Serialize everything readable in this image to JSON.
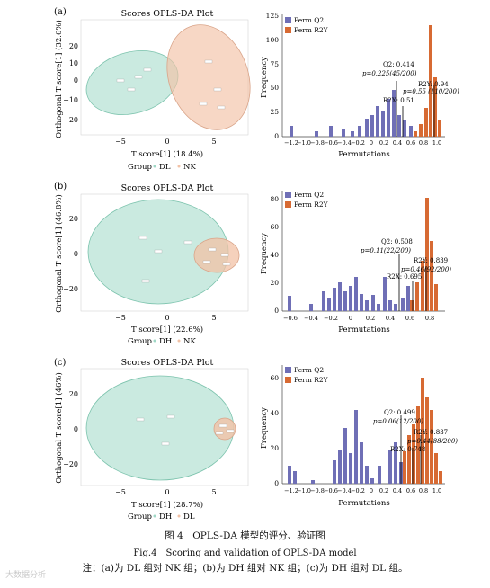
{
  "panels": [
    {
      "label": "(a)",
      "scores": {
        "title": "Scores OPLS-DA Plot",
        "xlabel": "T score[1] (18.4%)",
        "ylabel": "Orthogonal T score[1] (32.6%)",
        "xticks": [
          "−5",
          "0",
          "5"
        ],
        "yticks": [
          "20",
          "10",
          "0",
          "−10",
          "−20"
        ],
        "legend_title": "Group",
        "groups": [
          {
            "name": "DL",
            "color": "#9fd8c6"
          },
          {
            "name": "NK",
            "color": "#f2c2a6"
          }
        ]
      },
      "perm": {
        "legend": [
          "Perm Q2",
          "Perm R2Y"
        ],
        "ylabel": "Frequency",
        "xlabel": "Permutations",
        "yticks": [
          "0",
          "25",
          "50",
          "75",
          "100",
          "125"
        ],
        "xticks": [
          "−1.2",
          "−1.0",
          "−0.8",
          "−0.6",
          "−0.4",
          "−0.2",
          "0",
          "0.2",
          "0.4",
          "0.6",
          "0.8",
          "1.0"
        ],
        "annotations": [
          {
            "line1": "Q2: 0.414",
            "line2": "p=0.225(45/200)"
          },
          {
            "line1": "R2X: 0.51",
            "line2": ""
          },
          {
            "line1": "R2Y: 0.94",
            "line2": "p=0.55 (110/200)"
          }
        ]
      }
    },
    {
      "label": "(b)",
      "scores": {
        "title": "Scores OPLS-DA Plot",
        "xlabel": "T score[1] (22.6%)",
        "ylabel": "Orthogonal T score[1] (46.8%)",
        "xticks": [
          "−5",
          "0",
          "5"
        ],
        "yticks": [
          "20",
          "0",
          "−20"
        ],
        "legend_title": "Group",
        "groups": [
          {
            "name": "DH",
            "color": "#9fd8c6"
          },
          {
            "name": "NK",
            "color": "#f2c2a6"
          }
        ]
      },
      "perm": {
        "legend": [
          "Perm Q2",
          "Perm R2Y"
        ],
        "ylabel": "Frequency",
        "xlabel": "Permutations",
        "yticks": [
          "0",
          "20",
          "40",
          "60",
          "80"
        ],
        "xticks": [
          "−0.6",
          "−0.4",
          "−0.2",
          "0",
          "0.2",
          "0.4",
          "0.6",
          "0.8"
        ],
        "annotations": [
          {
            "line1": "Q2: 0.508",
            "line2": "p=0.11(22/200)"
          },
          {
            "line1": "R2X: 0.695",
            "line2": ""
          },
          {
            "line1": "R2Y: 0.839",
            "line2": "p=0.46(92/200)"
          }
        ]
      }
    },
    {
      "label": "(c)",
      "scores": {
        "title": "Scores OPLS-DA Plot",
        "xlabel": "T score[1] (28.7%)",
        "ylabel": "Orthogonal T score[1] (46%)",
        "xticks": [
          "−5",
          "0",
          "5"
        ],
        "yticks": [
          "20",
          "0",
          "−20"
        ],
        "legend_title": "Group",
        "groups": [
          {
            "name": "DH",
            "color": "#9fd8c6"
          },
          {
            "name": "DL",
            "color": "#f2c2a6"
          }
        ]
      },
      "perm": {
        "legend": [
          "Perm Q2",
          "Perm R2Y"
        ],
        "ylabel": "Frequency",
        "xlabel": "Permutations",
        "yticks": [
          "0",
          "20",
          "40",
          "60"
        ],
        "xticks": [
          "−1.2",
          "−1.0",
          "−0.8",
          "−0.6",
          "−0.4",
          "−0.2",
          "0",
          "0.2",
          "0.4",
          "0.6",
          "0.8",
          "1.0"
        ],
        "annotations": [
          {
            "line1": "Q2: 0.499",
            "line2": "p=0.06(12/200)"
          },
          {
            "line1": "R2X: 0.748",
            "line2": ""
          },
          {
            "line1": "R2Y: 0.837",
            "line2": "p=0.44(88/200)"
          }
        ]
      }
    }
  ],
  "colors": {
    "q2": "#6f6fb6",
    "r2y": "#d76a33",
    "ellipse_a": "#9fd8c6",
    "ellipse_b": "#f2c2a6"
  },
  "caption": {
    "cn": "图 4　OPLS-DA 模型的评分、验证图",
    "en": "Fig.4　Scoring and validation of OPLS-DA model",
    "note": "注：(a)为 DL 组对 NK 组；(b)为 DH 组对 NK 组；(c)为 DH 组对 DL 组。"
  },
  "watermark": "大数据分析"
}
